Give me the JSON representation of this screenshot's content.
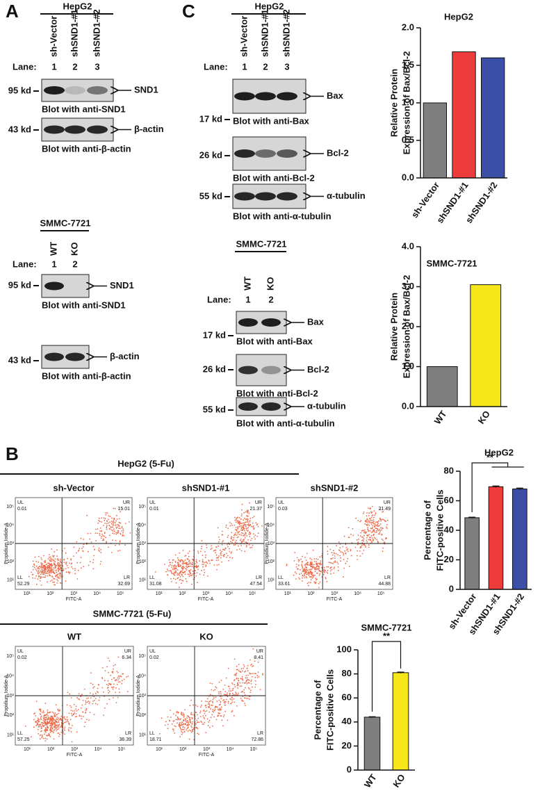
{
  "panel_a": {
    "letter": "A",
    "hepg2": {
      "cell_line": "HepG2",
      "lanes": [
        "sh-Vector",
        "shSND1-#1",
        "shSND1-#2"
      ],
      "lane_label": "Lane:",
      "lane_numbers": [
        "1",
        "2",
        "3"
      ],
      "blots": [
        {
          "kd": "95 kd",
          "protein": "SND1",
          "caption": "Blot with anti-SND1"
        },
        {
          "kd": "43 kd",
          "protein": "β-actin",
          "caption": "Blot with anti-β-actin"
        }
      ]
    },
    "smmc": {
      "cell_line": "SMMC-7721",
      "lanes": [
        "WT",
        "KO"
      ],
      "lane_label": "Lane:",
      "lane_numbers": [
        "1",
        "2"
      ],
      "blots": [
        {
          "kd": "95 kd",
          "protein": "SND1",
          "caption": "Blot with anti-SND1"
        },
        {
          "kd": "43 kd",
          "protein": "β-actin",
          "caption": "Blot with anti-β-actin"
        }
      ]
    }
  },
  "panel_c": {
    "letter": "C",
    "hepg2": {
      "cell_line": "HepG2",
      "lanes": [
        "sh-Vector",
        "shSND1-#1",
        "shSND1-#2"
      ],
      "lane_label": "Lane:",
      "lane_numbers": [
        "1",
        "2",
        "3"
      ],
      "blots": [
        {
          "kd": "17 kd",
          "protein": "Bax",
          "caption": "Blot with anti-Bax"
        },
        {
          "kd": "26 kd",
          "protein": "Bcl-2",
          "caption": "Blot with anti-Bcl-2"
        },
        {
          "kd": "55 kd",
          "protein": "α-tubulin",
          "caption": "Blot with anti-α-tubulin"
        }
      ]
    },
    "smmc": {
      "cell_line": "SMMC-7721",
      "lanes": [
        "WT",
        "KO"
      ],
      "lane_label": "Lane:",
      "lane_numbers": [
        "1",
        "2"
      ],
      "blots": [
        {
          "kd": "17 kd",
          "protein": "Bax",
          "caption": "Blot with anti-Bax"
        },
        {
          "kd": "26 kd",
          "protein": "Bcl-2",
          "caption": "Blot with anti-Bcl-2"
        },
        {
          "kd": "55 kd",
          "protein": "α-tubulin",
          "caption": "Blot with anti-α-tubulin"
        }
      ]
    }
  },
  "panel_b": {
    "letter": "B",
    "x_label": "FITC-A",
    "y_label": "Propidium Iodide-A",
    "axis_ticks": [
      "10¹",
      "10²",
      "10³",
      "10⁴",
      "10⁵"
    ],
    "hepg2": {
      "title": "HepG2 (5-Fu)",
      "plots": [
        {
          "name": "sh-Vector",
          "quadrants": [
            {
              "name": "UL",
              "value": 0.01
            },
            {
              "name": "UR",
              "value": 15.01
            },
            {
              "name": "LL",
              "value": 52.29
            },
            {
              "name": "LR",
              "value": 32.69
            }
          ]
        },
        {
          "name": "shSND1-#1",
          "quadrants": [
            {
              "name": "UL",
              "value": 0.01
            },
            {
              "name": "UR",
              "value": 21.37
            },
            {
              "name": "LL",
              "value": 31.08
            },
            {
              "name": "LR",
              "value": 47.54
            }
          ]
        },
        {
          "name": "shSND1-#2",
          "quadrants": [
            {
              "name": "UL",
              "value": 0.03
            },
            {
              "name": "UR",
              "value": 21.49
            },
            {
              "name": "LL",
              "value": 33.61
            },
            {
              "name": "LR",
              "value": 44.88
            }
          ]
        }
      ]
    },
    "smmc": {
      "title": "SMMC-7721 (5-Fu)",
      "plots": [
        {
          "name": "WT",
          "quadrants": [
            {
              "name": "UL",
              "value": 0.02
            },
            {
              "name": "UR",
              "value": 6.34
            },
            {
              "name": "LL",
              "value": 57.25
            },
            {
              "name": "LR",
              "value": 36.39
            }
          ]
        },
        {
          "name": "KO",
          "quadrants": [
            {
              "name": "UL",
              "value": 0.02
            },
            {
              "name": "UR",
              "value": 8.41
            },
            {
              "name": "LL",
              "value": 18.71
            },
            {
              "name": "LR",
              "value": 72.86
            }
          ]
        }
      ]
    }
  },
  "chart_data": [
    {
      "type": "bar",
      "title": "HepG2",
      "y_label": [
        "Relative Protein",
        "Expression of Bax/Bcl-2"
      ],
      "categories": [
        "sh-Vector",
        "shSND1-#1",
        "shSND1-#2"
      ],
      "values": [
        1.0,
        1.68,
        1.6
      ],
      "colors": [
        "#7f7f7f",
        "#ee3b3b",
        "#3b4fa6"
      ],
      "ylim": [
        0,
        2.0
      ],
      "yticks": [
        {
          "value": 0,
          "label": "0.0"
        },
        {
          "value": 0.5,
          "label": "0.5"
        },
        {
          "value": 1.0,
          "label": "1.0"
        },
        {
          "value": 1.5,
          "label": "1.5"
        },
        {
          "value": 2.0,
          "label": "2.0"
        }
      ]
    },
    {
      "type": "bar",
      "title": "SMMC-7721",
      "y_label": [
        "Relative Protein",
        "Expression of Bax/Bcl-2"
      ],
      "categories": [
        "WT",
        "KO"
      ],
      "values": [
        1.0,
        3.05
      ],
      "colors": [
        "#7f7f7f",
        "#f5e71a"
      ],
      "ylim": [
        0,
        4.0
      ],
      "yticks": [
        {
          "value": 0,
          "label": "0.0"
        },
        {
          "value": 1.0,
          "label": "1.0"
        },
        {
          "value": 2.0,
          "label": "2.0"
        },
        {
          "value": 3.0,
          "label": "3.0"
        },
        {
          "value": 4.0,
          "label": "4.0"
        }
      ]
    },
    {
      "type": "bar",
      "title": "HepG2",
      "y_label": [
        "Percentage of",
        "FITC-positive Cells"
      ],
      "categories": [
        "sh-Vector",
        "shSND1-#1",
        "shSND1-#2"
      ],
      "values": [
        48.5,
        69.5,
        68
      ],
      "errors": [
        0.4,
        0.5,
        0.6
      ],
      "colors": [
        "#7f7f7f",
        "#ee3b3b",
        "#3b4fa6"
      ],
      "significance": "**",
      "ylim": [
        0,
        80
      ],
      "yticks": [
        0,
        20,
        40,
        60,
        80
      ]
    },
    {
      "type": "bar",
      "title": "SMMC-7721",
      "y_label": [
        "Percentage of",
        "FITC-positive Cells"
      ],
      "categories": [
        "WT",
        "KO"
      ],
      "values": [
        44,
        81
      ],
      "errors": [
        0.4,
        0.5
      ],
      "colors": [
        "#7f7f7f",
        "#f5e71a"
      ],
      "significance": "**",
      "ylim": [
        0,
        100
      ],
      "yticks": [
        0,
        20,
        40,
        60,
        80,
        100
      ]
    }
  ]
}
